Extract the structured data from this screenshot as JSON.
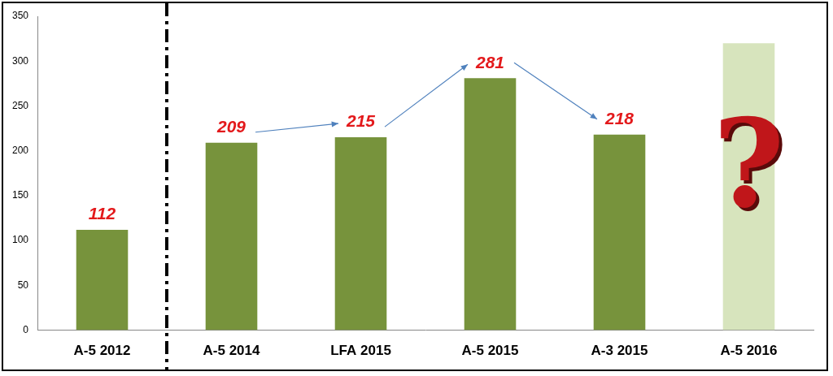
{
  "chart_data": {
    "type": "bar",
    "categories": [
      "A-5 2012",
      "A-5 2014",
      "LFA 2015",
      "A-5 2015",
      "A-3 2015",
      "A-5 2016"
    ],
    "values": [
      112,
      209,
      215,
      281,
      218,
      320
    ],
    "colors": [
      "#77933c",
      "#77933c",
      "#77933c",
      "#77933c",
      "#77933c",
      "#d7e4bd"
    ],
    "ylim": [
      0,
      350
    ],
    "yticks": [
      0,
      50,
      100,
      150,
      200,
      250,
      300,
      350
    ],
    "grid": false,
    "data_labels": true,
    "value_labels": [
      "112",
      "209",
      "215",
      "281",
      "218",
      null
    ],
    "annotations": [
      {
        "category": "A-5 2016",
        "text": "?"
      }
    ]
  }
}
